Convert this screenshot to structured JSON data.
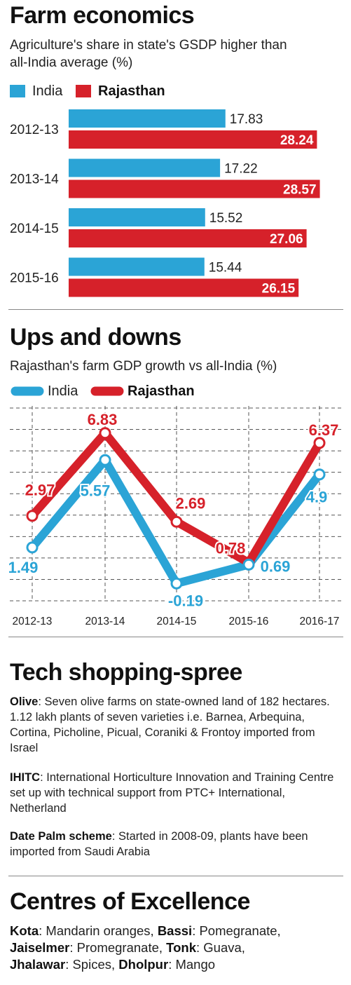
{
  "colors": {
    "india": "#2ba4d6",
    "rajasthan": "#d6212a"
  },
  "section1": {
    "title": "Farm economics",
    "subtitle_line1": "Agriculture's share in state's GSDP higher than",
    "subtitle_line2": "all-India average (%)",
    "legend_india": "India",
    "legend_rajasthan": "Rajasthan"
  },
  "section2": {
    "title": "Ups and downs",
    "subtitle": "Rajasthan's farm GDP growth vs all-India (%)",
    "legend_india": "India",
    "legend_rajasthan": "Rajasthan"
  },
  "chart_data": [
    {
      "type": "bar",
      "orientation": "horizontal",
      "title": "Farm economics",
      "subtitle": "Agriculture's share in state's GSDP higher than all-India average (%)",
      "categories": [
        "2012-13",
        "2013-14",
        "2014-15",
        "2015-16"
      ],
      "series": [
        {
          "name": "India",
          "values": [
            17.83,
            17.22,
            15.52,
            15.44
          ]
        },
        {
          "name": "Rajasthan",
          "values": [
            28.24,
            28.57,
            27.06,
            26.15
          ]
        }
      ],
      "legend": "top-left"
    },
    {
      "type": "line",
      "title": "Ups and downs",
      "subtitle": "Rajasthan's farm GDP growth vs all-India (%)",
      "x": [
        "2012-13",
        "2013-14",
        "2014-15",
        "2015-16",
        "2016-17"
      ],
      "series": [
        {
          "name": "India",
          "values": [
            1.49,
            5.57,
            -0.19,
            0.69,
            4.9
          ]
        },
        {
          "name": "Rajasthan",
          "values": [
            2.97,
            6.83,
            2.69,
            0.78,
            6.37
          ]
        }
      ],
      "ylim": [
        -1,
        8
      ],
      "grid": true,
      "legend": "top-left"
    }
  ],
  "section3": {
    "title": "Tech shopping-spree",
    "items": [
      {
        "label": "Olive",
        "text": ": Seven olive farms on state-owned land of 182 hectares. 1.12 lakh plants of seven varieties i.e. Barnea, Arbequina, Cortina, Picholine, Picual, Coraniki & Frontoy imported from Israel"
      },
      {
        "label": "IHITC",
        "text": ": International Horticulture Innovation and Training Centre set up with technical support from PTC+ International, Netherland"
      },
      {
        "label": "Date Palm scheme",
        "text": ": Started in 2008-09, plants have been imported from Saudi Arabia"
      }
    ]
  },
  "section4": {
    "title": "Centres of Excellence",
    "entries": [
      {
        "place": "Kota",
        "crop": ": Mandarin oranges, "
      },
      {
        "place": "Bassi",
        "crop": ": Pomegranate, "
      },
      {
        "place": "Jaiselmer",
        "crop": ": Promegranate, "
      },
      {
        "place": "Tonk",
        "crop": ": Guava, "
      },
      {
        "place": "Jhalawar",
        "crop": ": Spices, "
      },
      {
        "place": "Dholpur",
        "crop": ": Mango"
      }
    ]
  }
}
